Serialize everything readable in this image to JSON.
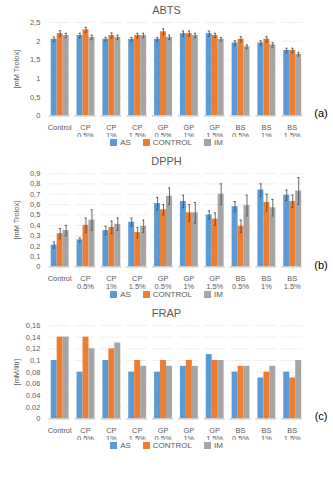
{
  "chart_data": [
    {
      "type": "bar",
      "title": "ABTS",
      "annotation": "(a)",
      "y_label": "[mM Trolox]",
      "categories": [
        "Control",
        "CP 0.5%",
        "CP 1%",
        "CP 1.5%",
        "GP 0.5%",
        "GP 1%",
        "GP 1.5%",
        "BS 0.5%",
        "BS 1%",
        "BS 1.5%"
      ],
      "series": [
        {
          "name": "AS",
          "color": "#5B9BD5",
          "values": [
            2.05,
            2.15,
            2.05,
            2.05,
            2.05,
            2.2,
            2.2,
            1.95,
            1.95,
            1.75
          ],
          "errors": [
            0.06,
            0.06,
            0.05,
            0.05,
            0.05,
            0.07,
            0.07,
            0.06,
            0.06,
            0.06
          ]
        },
        {
          "name": "CONTROL",
          "color": "#ED7D31",
          "values": [
            2.2,
            2.3,
            2.15,
            2.15,
            2.25,
            2.2,
            2.15,
            2.05,
            2.05,
            1.75
          ],
          "errors": [
            0.08,
            0.07,
            0.07,
            0.06,
            0.08,
            0.07,
            0.06,
            0.07,
            0.07,
            0.06
          ]
        },
        {
          "name": "IM",
          "color": "#A5A5A5",
          "values": [
            2.15,
            2.1,
            2.1,
            2.15,
            2.1,
            2.15,
            2.05,
            1.85,
            1.9,
            1.65
          ],
          "errors": [
            0.06,
            0.06,
            0.06,
            0.06,
            0.06,
            0.06,
            0.05,
            0.05,
            0.06,
            0.05
          ]
        }
      ],
      "ylim": [
        0,
        2.5
      ],
      "yticks": [
        0,
        {
          "value": 0.5,
          "label": "0,5"
        },
        1,
        {
          "value": 1.5,
          "label": "1,5"
        },
        2,
        {
          "value": 2.5,
          "label": "2,5"
        }
      ],
      "grid": true,
      "legend": "bottom"
    },
    {
      "type": "bar",
      "title": "DPPH",
      "annotation": "(b)",
      "y_label": "[mM Trolox]",
      "categories": [
        "Control",
        "CP 0.5%",
        "CP 1%",
        "CP 1.5%",
        "GP 0.5%",
        "GP 1%",
        "GP 1.5%",
        "BS 0.5%",
        "BS 1%",
        "BS 1.5%"
      ],
      "series": [
        {
          "name": "AS",
          "color": "#5B9BD5",
          "values": [
            0.21,
            0.26,
            0.35,
            0.43,
            0.61,
            0.63,
            0.5,
            0.58,
            0.74,
            0.69
          ],
          "errors": [
            0.03,
            0.02,
            0.04,
            0.04,
            0.06,
            0.06,
            0.04,
            0.05,
            0.06,
            0.05
          ]
        },
        {
          "name": "CONTROL",
          "color": "#ED7D31",
          "values": [
            0.32,
            0.4,
            0.38,
            0.33,
            0.55,
            0.52,
            0.46,
            0.39,
            0.62,
            0.63
          ],
          "errors": [
            0.05,
            0.07,
            0.06,
            0.05,
            0.05,
            0.08,
            0.06,
            0.06,
            0.08,
            0.06
          ]
        },
        {
          "name": "IM",
          "color": "#A5A5A5",
          "values": [
            0.35,
            0.45,
            0.41,
            0.39,
            0.68,
            0.52,
            0.7,
            0.59,
            0.57,
            0.73
          ],
          "errors": [
            0.05,
            0.1,
            0.06,
            0.06,
            0.08,
            0.1,
            0.1,
            0.1,
            0.08,
            0.13
          ]
        }
      ],
      "ylim": [
        0,
        0.9
      ],
      "yticks": [
        0,
        {
          "value": 0.1,
          "label": "0,1"
        },
        {
          "value": 0.2,
          "label": "0,2"
        },
        {
          "value": 0.3,
          "label": "0,3"
        },
        {
          "value": 0.4,
          "label": "0,4"
        },
        {
          "value": 0.5,
          "label": "0,5"
        },
        {
          "value": 0.6,
          "label": "0,6"
        },
        {
          "value": 0.7,
          "label": "0,7"
        },
        {
          "value": 0.8,
          "label": "0,8"
        },
        {
          "value": 0.9,
          "label": "0,9"
        }
      ],
      "grid": true,
      "legend": "bottom"
    },
    {
      "type": "bar",
      "title": "FRAP",
      "annotation": "(c)",
      "y_label": "[mM/litr]",
      "categories": [
        "Control",
        "CP 0.5%",
        "CP 1%",
        "CP 1.5%",
        "GP 0.5%",
        "GP 1%",
        "GP 1.5%",
        "BS 0.5%",
        "BS 1%",
        "BS 1.5%"
      ],
      "series": [
        {
          "name": "AS",
          "color": "#5B9BD5",
          "values": [
            0.1,
            0.08,
            0.1,
            0.08,
            0.08,
            0.09,
            0.11,
            0.08,
            0.07,
            0.08
          ]
        },
        {
          "name": "CONTROL",
          "color": "#ED7D31",
          "values": [
            0.14,
            0.14,
            0.12,
            0.1,
            0.1,
            0.1,
            0.1,
            0.09,
            0.08,
            0.07
          ]
        },
        {
          "name": "IM",
          "color": "#A5A5A5",
          "values": [
            0.14,
            0.12,
            0.13,
            0.09,
            0.09,
            0.09,
            0.1,
            0.09,
            0.09,
            0.1
          ]
        }
      ],
      "ylim": [
        0,
        0.16
      ],
      "yticks": [
        0,
        {
          "value": 0.02,
          "label": "0,02"
        },
        {
          "value": 0.04,
          "label": "0,04"
        },
        {
          "value": 0.06,
          "label": "0,06"
        },
        {
          "value": 0.08,
          "label": "0,08"
        },
        {
          "value": 0.1,
          "label": "0,1"
        },
        {
          "value": 0.12,
          "label": "0,12"
        },
        {
          "value": 0.14,
          "label": "0,14"
        },
        {
          "value": 0.16,
          "label": "0,16"
        }
      ],
      "grid": true,
      "legend": "bottom"
    }
  ]
}
